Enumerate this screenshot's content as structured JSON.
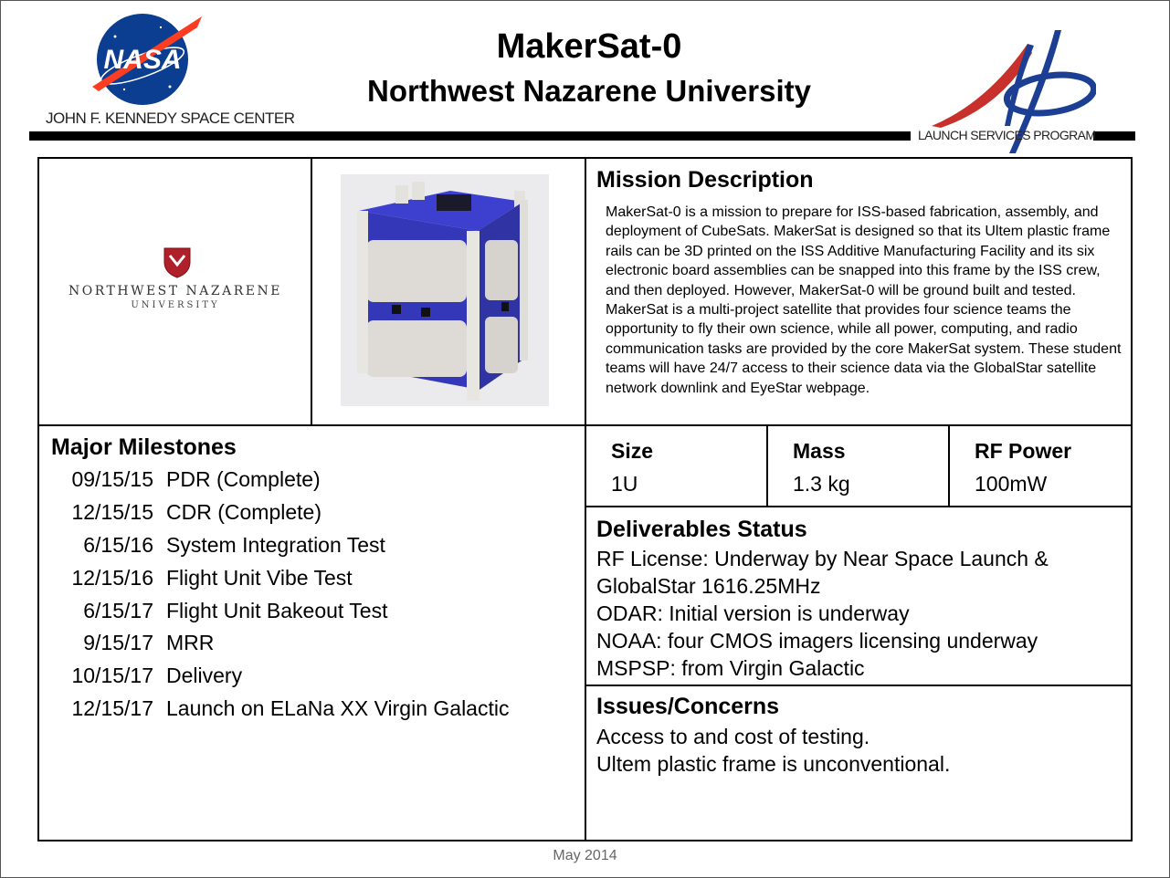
{
  "header": {
    "title": "MakerSat-0",
    "subtitle": "Northwest Nazarene University",
    "left_logo_label": "JOHN F. KENNEDY SPACE CENTER",
    "left_logo_text": "NASA",
    "right_logo_label": "LAUNCH SERVICES PROGRAM"
  },
  "partner_logo": {
    "name": "NORTHWEST NAZARENE",
    "sub": "UNIVERSITY"
  },
  "mission": {
    "title": "Mission Description",
    "body": "MakerSat-0 is a mission to prepare for ISS-based fabrication, assembly, and deployment of CubeSats.  MakerSat is designed so that its Ultem plastic frame rails can be 3D printed on the ISS Additive Manufacturing Facility and its six electronic board assemblies can be snapped into this frame by the ISS crew, and then deployed. However, MakerSat-0 will be ground built and tested. MakerSat is a multi-project satellite that provides four science teams the opportunity to fly their own science, while all power, computing, and radio communication tasks are provided by the core MakerSat system.  These student teams will have 24/7 access to their science data via  the GlobalStar satellite network downlink and EyeStar webpage."
  },
  "milestones": {
    "title": "Major Milestones",
    "items": [
      {
        "date": "09/15/15",
        "event": "PDR (Complete)"
      },
      {
        "date": "12/15/15",
        "event": "CDR (Complete)"
      },
      {
        "date": "6/15/16",
        "event": "System Integration Test"
      },
      {
        "date": "12/15/16",
        "event": "Flight Unit Vibe Test"
      },
      {
        "date": "6/15/17",
        "event": "Flight Unit Bakeout Test"
      },
      {
        "date": "9/15/17",
        "event": "MRR"
      },
      {
        "date": "10/15/17",
        "event": "Delivery"
      },
      {
        "date": "12/15/17",
        "event": "Launch on ELaNa XX Virgin Galactic"
      }
    ]
  },
  "stats": {
    "size_label": "Size",
    "size_value": "1U",
    "mass_label": "Mass",
    "mass_value": "1.3 kg",
    "rf_label": "RF Power",
    "rf_value": "100mW"
  },
  "deliverables": {
    "title": "Deliverables Status",
    "lines": [
      "RF License: Underway by Near Space Launch &",
      "GlobalStar 1616.25MHz",
      "ODAR: Initial version is underway",
      "NOAA: four CMOS imagers licensing underway",
      "MSPSP: from Virgin Galactic"
    ]
  },
  "issues": {
    "title": "Issues/Concerns",
    "lines": [
      "Access to and cost of testing.",
      "Ultem plastic frame is unconventional."
    ]
  },
  "footer": {
    "date": "May 2014"
  },
  "colors": {
    "nasa_blue": "#0b3d91",
    "nasa_red": "#fc3d21",
    "nnu_red": "#b0202a",
    "cubesat_blue": "#3b3ec9"
  },
  "icons": [
    "nasa-meatball-logo",
    "lsp-logo",
    "nnu-shield-logo",
    "cubesat-image"
  ]
}
